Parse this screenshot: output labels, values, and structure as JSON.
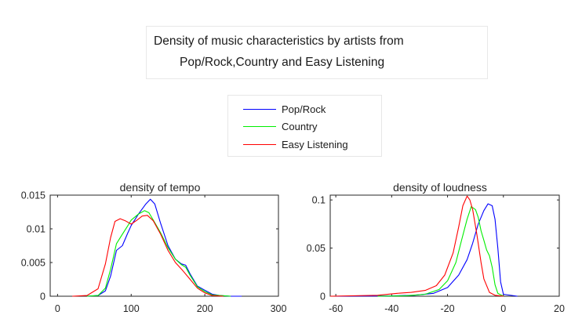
{
  "figure": {
    "title_line1": "Density of music characteristics by artists from",
    "title_line2": "Pop/Rock,Country and Easy Listening"
  },
  "legend": {
    "placement": "top-center",
    "items": [
      {
        "label": "Pop/Rock",
        "color": "#0000ff"
      },
      {
        "label": "Country",
        "color": "#00ee00"
      },
      {
        "label": "Easy Listening",
        "color": "#ff0000"
      }
    ]
  },
  "chart_data": [
    {
      "type": "line",
      "title": "density of tempo",
      "xlabel": "",
      "ylabel": "",
      "xlim": [
        -10,
        300
      ],
      "ylim": [
        0,
        0.015
      ],
      "xticks": [
        0,
        100,
        200,
        300
      ],
      "yticks": [
        0,
        0.005,
        0.01,
        0.015
      ],
      "xtick_labels": [
        "0",
        "100",
        "200",
        "300"
      ],
      "ytick_labels": [
        "0",
        "0.005",
        "0.01",
        "0.015"
      ],
      "grid": false,
      "series": [
        {
          "name": "Pop/Rock",
          "color": "#0000ff",
          "x": [
            40,
            55,
            65,
            72,
            80,
            88,
            95,
            100,
            110,
            120,
            126,
            132,
            140,
            150,
            160,
            168,
            174,
            180,
            190,
            200,
            210,
            220,
            235,
            250
          ],
          "y": [
            0,
            0.0001,
            0.0008,
            0.003,
            0.0068,
            0.0075,
            0.0093,
            0.0105,
            0.0122,
            0.0137,
            0.0144,
            0.0137,
            0.0108,
            0.0075,
            0.0055,
            0.0048,
            0.0046,
            0.0033,
            0.0015,
            0.0009,
            0.0003,
            0.0001,
            0,
            0
          ]
        },
        {
          "name": "Country",
          "color": "#00ee00",
          "x": [
            40,
            55,
            65,
            72,
            80,
            88,
            95,
            100,
            110,
            118,
            124,
            130,
            140,
            150,
            160,
            168,
            174,
            180,
            190,
            200,
            210,
            220,
            235
          ],
          "y": [
            0,
            0.0001,
            0.0012,
            0.004,
            0.0078,
            0.0092,
            0.0104,
            0.0113,
            0.0122,
            0.0127,
            0.0124,
            0.0113,
            0.0094,
            0.0072,
            0.0055,
            0.0047,
            0.0043,
            0.0031,
            0.0014,
            0.0007,
            0.0002,
            0.0001,
            0
          ]
        },
        {
          "name": "Easy Listening",
          "color": "#ff0000",
          "x": [
            20,
            40,
            55,
            65,
            72,
            78,
            85,
            92,
            100,
            108,
            115,
            122,
            130,
            140,
            150,
            160,
            170,
            180,
            190,
            200,
            210,
            225
          ],
          "y": [
            0,
            0.0001,
            0.0011,
            0.0048,
            0.0087,
            0.0111,
            0.0115,
            0.0112,
            0.0107,
            0.0113,
            0.0119,
            0.012,
            0.0112,
            0.0092,
            0.0068,
            0.005,
            0.0038,
            0.0025,
            0.0012,
            0.0005,
            0.0001,
            0
          ]
        }
      ]
    },
    {
      "type": "line",
      "title": "density of loudness",
      "xlabel": "",
      "ylabel": "",
      "xlim": [
        -62,
        20
      ],
      "ylim": [
        0,
        0.105
      ],
      "xticks": [
        -60,
        -40,
        -20,
        0,
        20
      ],
      "yticks": [
        0,
        0.05,
        0.1
      ],
      "xtick_labels": [
        "-60",
        "-40",
        "-20",
        "0",
        "20"
      ],
      "ytick_labels": [
        "0",
        "0.05",
        "0.1"
      ],
      "grid": false,
      "series": [
        {
          "name": "Pop/Rock",
          "color": "#0000ff",
          "x": [
            -60,
            -40,
            -32,
            -25,
            -20,
            -16,
            -13,
            -11,
            -9,
            -7,
            -5.5,
            -4,
            -3,
            -2,
            -1,
            0,
            5
          ],
          "y": [
            0,
            0.0003,
            0.001,
            0.003,
            0.009,
            0.022,
            0.038,
            0.055,
            0.075,
            0.089,
            0.096,
            0.094,
            0.08,
            0.05,
            0.015,
            0.002,
            0
          ]
        },
        {
          "name": "Country",
          "color": "#00ee00",
          "x": [
            -45,
            -35,
            -28,
            -23,
            -20,
            -17,
            -15,
            -13,
            -11.5,
            -10,
            -9,
            -8,
            -7,
            -6,
            -5,
            -4,
            -3,
            -2,
            0
          ],
          "y": [
            0,
            0.0005,
            0.002,
            0.007,
            0.016,
            0.035,
            0.058,
            0.08,
            0.093,
            0.09,
            0.082,
            0.068,
            0.058,
            0.048,
            0.042,
            0.03,
            0.012,
            0.003,
            0
          ]
        },
        {
          "name": "Easy Listening",
          "color": "#ff0000",
          "x": [
            -62,
            -45,
            -38,
            -33,
            -28,
            -24,
            -21,
            -18,
            -16,
            -14.5,
            -13,
            -12,
            -11,
            -9.5,
            -8,
            -7,
            -5,
            -3,
            0
          ],
          "y": [
            0,
            0.001,
            0.003,
            0.004,
            0.006,
            0.011,
            0.022,
            0.045,
            0.072,
            0.094,
            0.104,
            0.1,
            0.09,
            0.064,
            0.035,
            0.018,
            0.004,
            0.001,
            0
          ]
        }
      ]
    }
  ]
}
